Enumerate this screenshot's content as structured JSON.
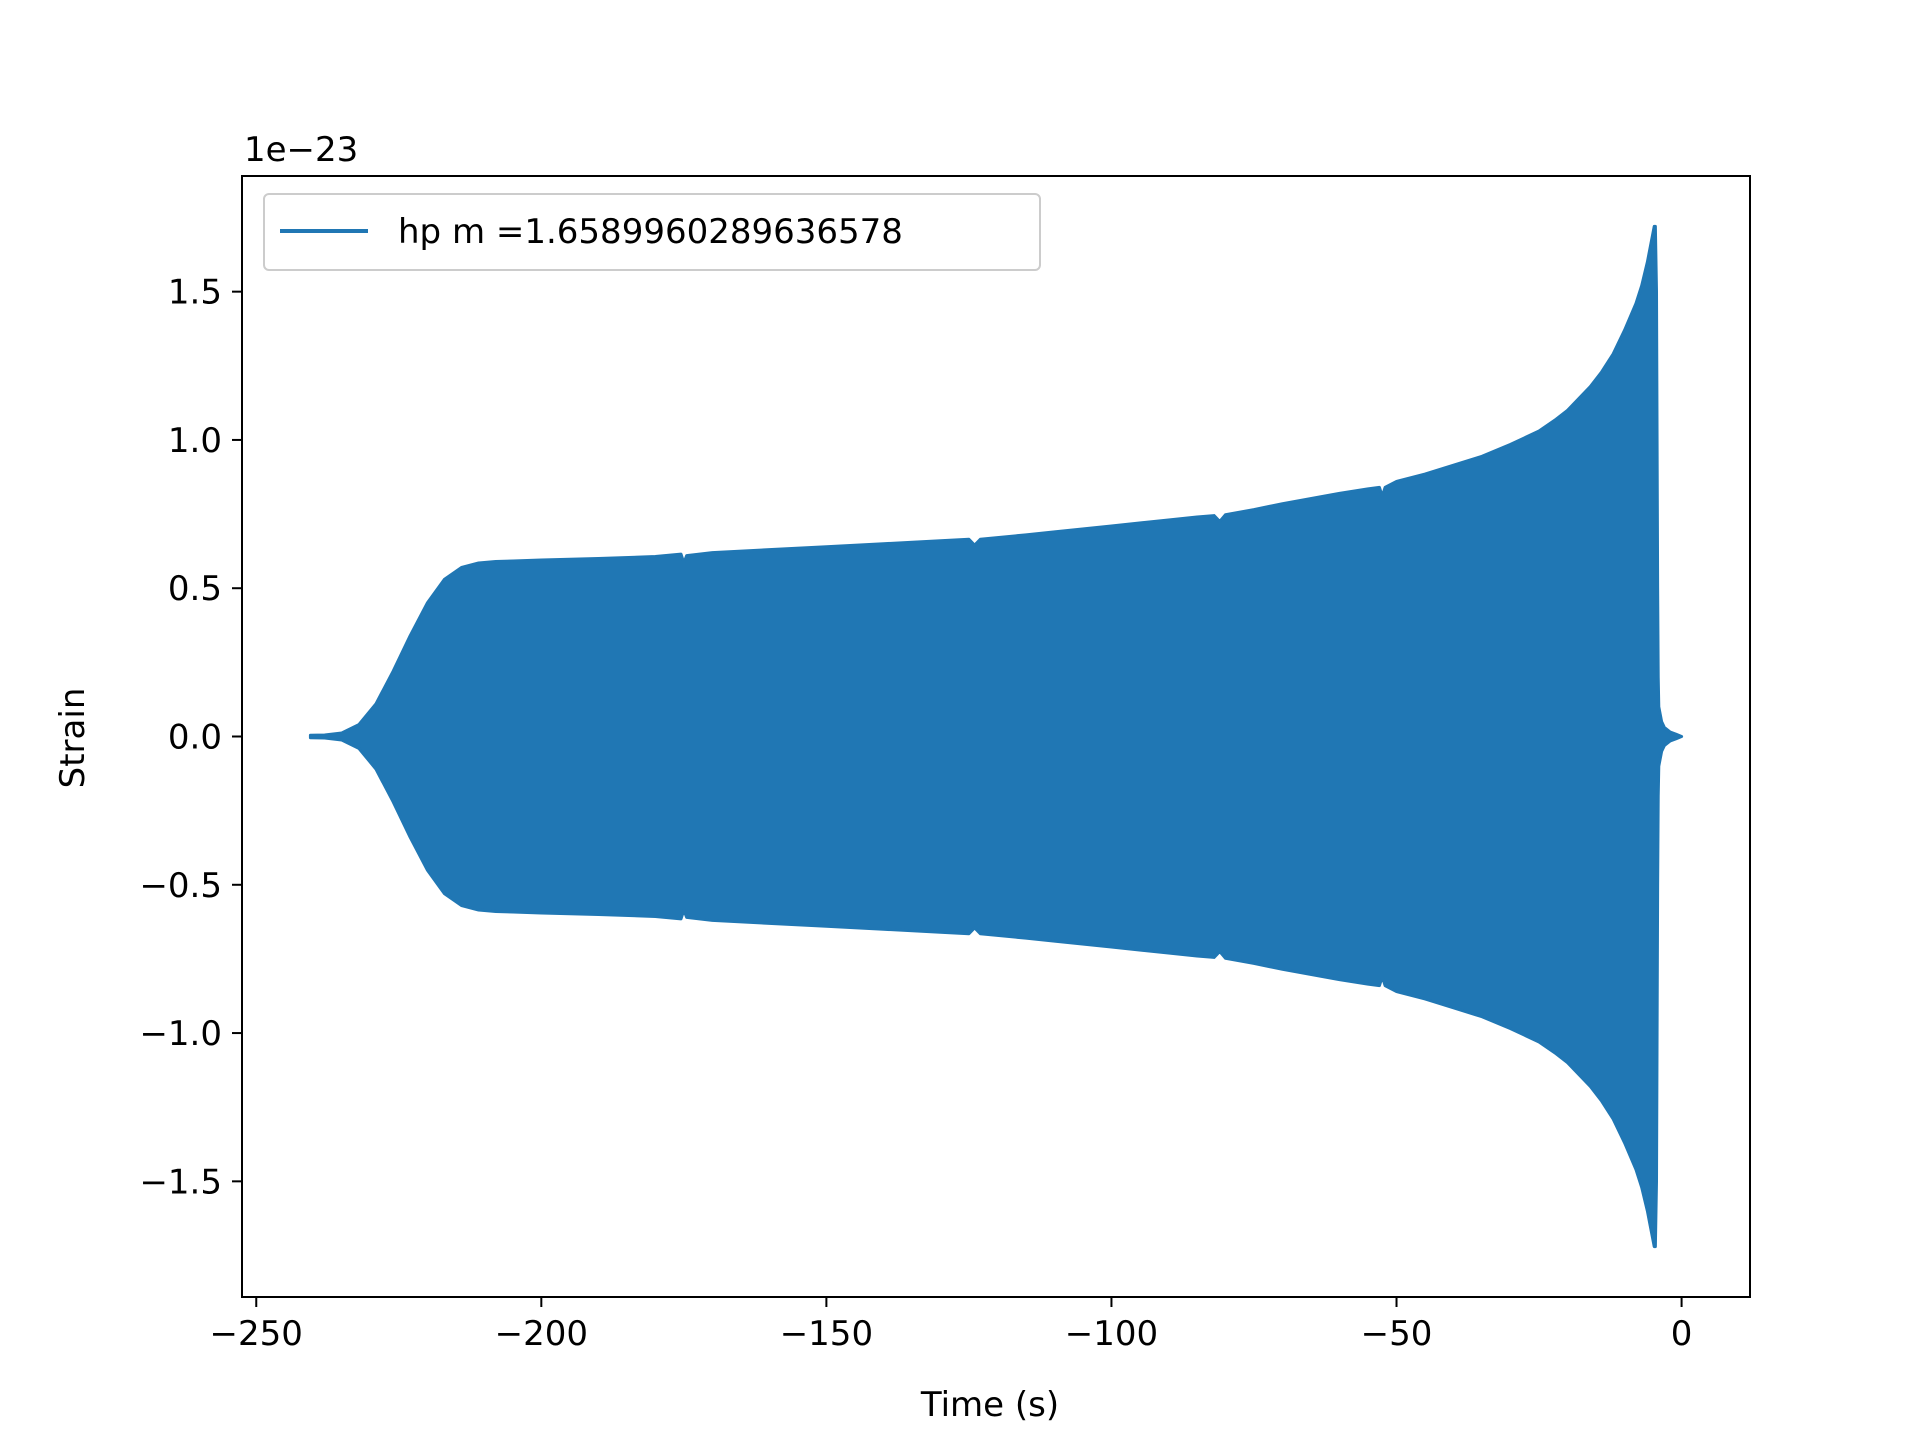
{
  "chart_data": {
    "type": "line",
    "xlabel": "Time (s)",
    "ylabel": "Strain",
    "offset_label": "1e−23",
    "y_scale_factor": 1e-23,
    "xlim": [
      -252.5,
      12
    ],
    "ylim": [
      -1.89,
      1.89
    ],
    "x_ticks": [
      -250,
      -200,
      -150,
      -100,
      -50,
      0
    ],
    "x_tick_labels": [
      "−250",
      "−200",
      "−150",
      "−100",
      "−50",
      "0"
    ],
    "y_ticks": [
      -1.5,
      -1.0,
      -0.5,
      0.0,
      0.5,
      1.0,
      1.5
    ],
    "y_tick_labels": [
      "−1.5",
      "−1.0",
      "−0.5",
      "0.0",
      "0.5",
      "1.0",
      "1.5"
    ],
    "grid": false,
    "legend_position": "upper-left",
    "colors": {
      "series": "#2077b4",
      "axes": "#000000",
      "legend_border": "#cccccc"
    },
    "series": [
      {
        "name": "hp m =1.6589960289636578",
        "description": "oscillating chirp signal; envelope amplitude (x10^-23) vs time (s)",
        "envelope": {
          "x": [
            -240.5,
            -238,
            -235,
            -232,
            -229,
            -226,
            -223,
            -220,
            -217,
            -214,
            -211,
            -208,
            -205,
            -200,
            -190,
            -180,
            -175.5,
            -175,
            -174.5,
            -170,
            -160,
            -150,
            -140,
            -130,
            -125,
            -124,
            -123,
            -115,
            -110,
            -100,
            -90,
            -85,
            -82,
            -81,
            -80,
            -75,
            -70,
            -60,
            -55,
            -53,
            -52.5,
            -52,
            -50,
            -45,
            -40,
            -35,
            -30,
            -25,
            -22,
            -20,
            -18,
            -16,
            -14,
            -12,
            -10,
            -8,
            -7,
            -6,
            -5.5,
            -5,
            -4.8,
            -4.6,
            -4.4,
            -4.3,
            -4.2,
            -4.1,
            -4.0,
            -3.5,
            -3.0,
            -2.0,
            -1.0,
            0.0
          ],
          "amplitude": [
            0.004,
            0.005,
            0.012,
            0.04,
            0.11,
            0.22,
            0.34,
            0.45,
            0.53,
            0.57,
            0.585,
            0.59,
            0.592,
            0.595,
            0.6,
            0.607,
            0.615,
            0.585,
            0.61,
            0.62,
            0.63,
            0.64,
            0.65,
            0.66,
            0.665,
            0.645,
            0.665,
            0.68,
            0.69,
            0.71,
            0.73,
            0.74,
            0.745,
            0.725,
            0.748,
            0.765,
            0.785,
            0.82,
            0.835,
            0.84,
            0.81,
            0.84,
            0.86,
            0.885,
            0.915,
            0.945,
            0.985,
            1.03,
            1.07,
            1.1,
            1.14,
            1.18,
            1.23,
            1.29,
            1.37,
            1.46,
            1.52,
            1.6,
            1.65,
            1.7,
            1.72,
            1.72,
            1.5,
            1.0,
            0.5,
            0.2,
            0.1,
            0.05,
            0.03,
            0.015,
            0.008,
            0.0
          ]
        }
      }
    ]
  }
}
